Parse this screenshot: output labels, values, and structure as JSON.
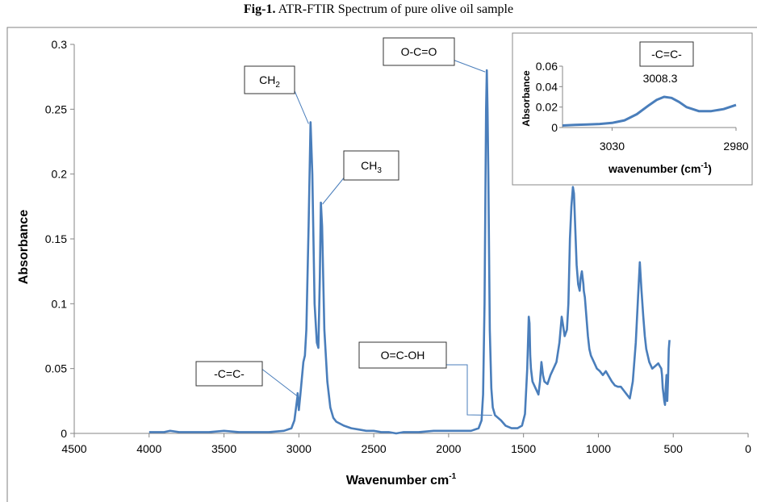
{
  "figure": {
    "title_bold": "Fig-1.",
    "title_rest": " ATR-FTIR Spectrum of pure olive oil sample"
  },
  "colors": {
    "line": "#4a7ebb",
    "axis": "#868686",
    "text": "#000000"
  },
  "chart_data": [
    {
      "type": "line",
      "title": "",
      "xlabel": "Wavenumber cm",
      "xlabel_sup": "-1",
      "ylabel": "Absorbance",
      "xlim": [
        4500,
        0
      ],
      "ylim": [
        0,
        0.3
      ],
      "x_ticks": [
        4500,
        4000,
        3500,
        3000,
        2500,
        2000,
        1500,
        1000,
        500,
        0
      ],
      "y_ticks": [
        0,
        0.05,
        0.1,
        0.15,
        0.2,
        0.25,
        0.3
      ],
      "grid": false,
      "legend": "none",
      "series": [
        {
          "x": [
            4000,
            3900,
            3860,
            3800,
            3700,
            3600,
            3500,
            3400,
            3300,
            3200,
            3100,
            3050,
            3030,
            3010,
            3008,
            3000,
            2990,
            2970,
            2960,
            2950,
            2935,
            2922,
            2910,
            2895,
            2880,
            2870,
            2860,
            2853,
            2845,
            2830,
            2810,
            2790,
            2770,
            2750,
            2700,
            2650,
            2600,
            2550,
            2500,
            2450,
            2400,
            2350,
            2300,
            2250,
            2200,
            2100,
            2000,
            1950,
            1900,
            1850,
            1800,
            1780,
            1770,
            1760,
            1750,
            1745,
            1740,
            1735,
            1725,
            1715,
            1705,
            1690,
            1670,
            1650,
            1620,
            1580,
            1540,
            1510,
            1490,
            1475,
            1465,
            1460,
            1455,
            1450,
            1440,
            1420,
            1400,
            1390,
            1380,
            1375,
            1370,
            1360,
            1340,
            1320,
            1300,
            1280,
            1260,
            1245,
            1238,
            1225,
            1210,
            1200,
            1190,
            1180,
            1170,
            1163,
            1155,
            1145,
            1135,
            1125,
            1118,
            1110,
            1100,
            1097,
            1090,
            1080,
            1070,
            1060,
            1050,
            1030,
            1010,
            990,
            970,
            950,
            930,
            910,
            890,
            870,
            850,
            830,
            810,
            790,
            770,
            750,
            735,
            723,
            712,
            700,
            690,
            680,
            660,
            640,
            620,
            600,
            590,
            580,
            575,
            570,
            565,
            560,
            555,
            550,
            545,
            540,
            535,
            530,
            525
          ],
          "y": [
            0.001,
            0.001,
            0.002,
            0.001,
            0.001,
            0.001,
            0.002,
            0.001,
            0.001,
            0.001,
            0.002,
            0.004,
            0.01,
            0.028,
            0.031,
            0.018,
            0.03,
            0.055,
            0.06,
            0.08,
            0.16,
            0.24,
            0.2,
            0.1,
            0.07,
            0.066,
            0.12,
            0.178,
            0.16,
            0.08,
            0.04,
            0.02,
            0.012,
            0.009,
            0.006,
            0.004,
            0.003,
            0.002,
            0.002,
            0.001,
            0.001,
            0.0,
            0.001,
            0.001,
            0.001,
            0.002,
            0.002,
            0.002,
            0.002,
            0.002,
            0.004,
            0.01,
            0.03,
            0.1,
            0.25,
            0.28,
            0.25,
            0.2,
            0.08,
            0.035,
            0.02,
            0.014,
            0.012,
            0.01,
            0.006,
            0.004,
            0.004,
            0.006,
            0.015,
            0.05,
            0.09,
            0.085,
            0.06,
            0.05,
            0.04,
            0.035,
            0.03,
            0.04,
            0.055,
            0.05,
            0.045,
            0.04,
            0.038,
            0.045,
            0.05,
            0.055,
            0.07,
            0.09,
            0.085,
            0.075,
            0.08,
            0.1,
            0.15,
            0.175,
            0.19,
            0.185,
            0.16,
            0.13,
            0.115,
            0.11,
            0.12,
            0.125,
            0.115,
            0.11,
            0.105,
            0.09,
            0.075,
            0.065,
            0.06,
            0.055,
            0.05,
            0.048,
            0.045,
            0.048,
            0.044,
            0.04,
            0.037,
            0.036,
            0.036,
            0.033,
            0.03,
            0.027,
            0.04,
            0.07,
            0.105,
            0.132,
            0.11,
            0.09,
            0.075,
            0.065,
            0.055,
            0.05,
            0.052,
            0.054,
            0.052,
            0.05,
            0.045,
            0.035,
            0.03,
            0.025,
            0.022,
            0.035,
            0.045,
            0.025,
            0.04,
            0.065,
            0.072
          ]
        }
      ],
      "annotations": [
        {
          "label": "CH",
          "sub": "2",
          "x": 2924,
          "y": 0.24
        },
        {
          "label": "CH",
          "sub": "3",
          "x": 2853,
          "y": 0.178
        },
        {
          "label": "O-C=O",
          "sub": "",
          "x": 1745,
          "y": 0.28
        },
        {
          "label": "-C=C-",
          "sub": "",
          "x": 3008,
          "y": 0.029
        },
        {
          "label": "O=C-OH",
          "sub": "",
          "x": 1710,
          "y": 0.014
        }
      ]
    },
    {
      "type": "line",
      "title": "",
      "xlabel": "wavenumber (cm",
      "xlabel_sup": "-1",
      "xlabel_tail": ")",
      "ylabel": "Absorbance",
      "xlim": [
        3050,
        2980
      ],
      "ylim": [
        0,
        0.06
      ],
      "x_ticks": [
        3030,
        2980
      ],
      "y_ticks": [
        0,
        0.02,
        0.04,
        0.06
      ],
      "grid": false,
      "legend": "none",
      "series": [
        {
          "x": [
            3050,
            3045,
            3040,
            3035,
            3030,
            3025,
            3020,
            3015,
            3012,
            3009,
            3006,
            3003,
            3000,
            2995,
            2990,
            2985,
            2980
          ],
          "y": [
            0.002,
            0.0025,
            0.003,
            0.0035,
            0.0045,
            0.007,
            0.013,
            0.022,
            0.027,
            0.03,
            0.029,
            0.025,
            0.02,
            0.016,
            0.016,
            0.018,
            0.022
          ]
        }
      ],
      "annotations": [
        {
          "label": "-C=C-",
          "sub": ""
        },
        {
          "label": "3008.3",
          "sub": ""
        }
      ]
    }
  ]
}
